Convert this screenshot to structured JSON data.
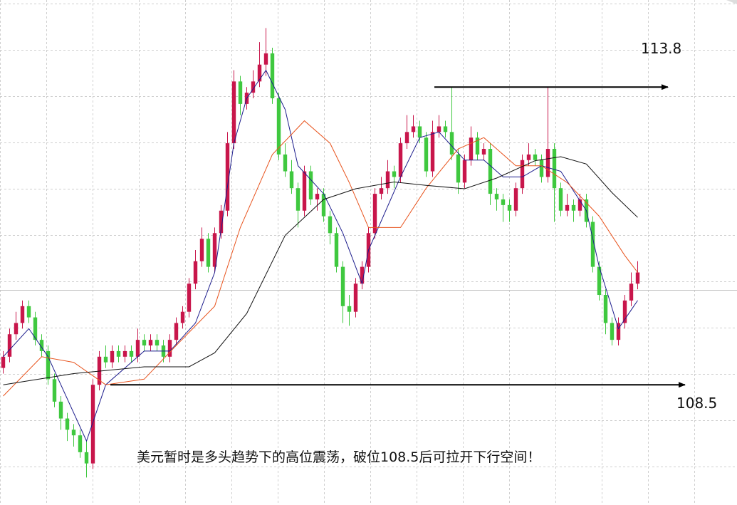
{
  "chart_data": {
    "type": "candlestick",
    "xlim": [
      -0.5,
      114.5
    ],
    "ylim": [
      106.36,
      115.35
    ],
    "colors": {
      "up": "#c8164b",
      "down": "#3fc83f"
    },
    "candles": [
      [
        108.8,
        109.1,
        108.7,
        109.0
      ],
      [
        109.0,
        109.5,
        108.9,
        109.4
      ],
      [
        109.4,
        109.8,
        109.3,
        109.6
      ],
      [
        109.6,
        110.0,
        109.5,
        109.9
      ],
      [
        109.9,
        110.0,
        109.6,
        109.7
      ],
      [
        109.7,
        109.8,
        109.2,
        109.3
      ],
      [
        109.3,
        109.4,
        109.0,
        109.1
      ],
      [
        109.1,
        109.2,
        108.5,
        108.6
      ],
      [
        108.6,
        108.7,
        108.1,
        108.2
      ],
      [
        108.2,
        108.3,
        107.7,
        107.9
      ],
      [
        107.9,
        108.0,
        107.5,
        107.7
      ],
      [
        107.7,
        107.8,
        107.4,
        107.6
      ],
      [
        107.6,
        107.7,
        107.2,
        107.3
      ],
      [
        107.3,
        107.5,
        106.85,
        107.1
      ],
      [
        107.1,
        108.6,
        107.0,
        108.5
      ],
      [
        108.5,
        109.1,
        108.4,
        109.0
      ],
      [
        109.0,
        109.2,
        108.8,
        108.9
      ],
      [
        108.9,
        109.2,
        108.8,
        109.1
      ],
      [
        109.1,
        109.2,
        108.9,
        109.0
      ],
      [
        109.0,
        109.2,
        108.9,
        109.1
      ],
      [
        109.1,
        109.2,
        108.9,
        109.0
      ],
      [
        109.0,
        109.5,
        108.9,
        109.3
      ],
      [
        109.3,
        109.4,
        109.1,
        109.2
      ],
      [
        109.2,
        109.4,
        109.1,
        109.3
      ],
      [
        109.3,
        109.4,
        109.1,
        109.2
      ],
      [
        109.2,
        109.3,
        108.9,
        109.0
      ],
      [
        109.0,
        109.4,
        108.9,
        109.3
      ],
      [
        109.3,
        109.7,
        109.2,
        109.6
      ],
      [
        109.6,
        109.9,
        109.5,
        109.8
      ],
      [
        109.8,
        110.4,
        109.7,
        110.3
      ],
      [
        110.3,
        110.9,
        110.2,
        110.7
      ],
      [
        110.7,
        111.3,
        110.6,
        111.1
      ],
      [
        111.1,
        111.2,
        110.5,
        110.6
      ],
      [
        110.6,
        111.3,
        110.5,
        111.2
      ],
      [
        111.2,
        111.7,
        111.1,
        111.6
      ],
      [
        111.6,
        113.0,
        111.5,
        112.8
      ],
      [
        112.8,
        114.1,
        112.7,
        113.9
      ],
      [
        113.9,
        114.0,
        113.3,
        113.5
      ],
      [
        113.5,
        113.8,
        113.4,
        113.7
      ],
      [
        113.7,
        114.1,
        113.6,
        113.9
      ],
      [
        113.9,
        114.6,
        113.8,
        114.2
      ],
      [
        114.2,
        114.85,
        114.0,
        114.4
      ],
      [
        114.4,
        114.5,
        113.5,
        113.6
      ],
      [
        113.6,
        113.7,
        112.5,
        112.6
      ],
      [
        112.6,
        112.8,
        112.2,
        112.3
      ],
      [
        112.3,
        112.5,
        111.9,
        112.0
      ],
      [
        112.0,
        112.1,
        111.3,
        111.6
      ],
      [
        111.6,
        112.4,
        111.5,
        112.3
      ],
      [
        112.3,
        112.4,
        111.7,
        111.8
      ],
      [
        111.8,
        112.0,
        111.6,
        111.9
      ],
      [
        111.9,
        112.0,
        111.4,
        111.5
      ],
      [
        111.5,
        111.6,
        111.0,
        111.2
      ],
      [
        111.2,
        111.3,
        110.5,
        110.6
      ],
      [
        110.6,
        110.7,
        109.6,
        109.9
      ],
      [
        109.9,
        110.1,
        109.55,
        109.8
      ],
      [
        109.8,
        110.4,
        109.7,
        110.3
      ],
      [
        110.3,
        110.7,
        110.2,
        110.6
      ],
      [
        110.6,
        111.3,
        110.5,
        111.2
      ],
      [
        111.2,
        112.0,
        111.1,
        111.9
      ],
      [
        111.9,
        112.2,
        111.8,
        112.0
      ],
      [
        112.0,
        112.5,
        111.9,
        112.3
      ],
      [
        112.3,
        112.4,
        112.0,
        112.2
      ],
      [
        112.2,
        112.9,
        112.1,
        112.8
      ],
      [
        112.8,
        113.3,
        112.7,
        113.0
      ],
      [
        113.0,
        113.3,
        112.9,
        113.1
      ],
      [
        113.1,
        113.2,
        112.8,
        112.9
      ],
      [
        112.9,
        113.0,
        112.2,
        112.3
      ],
      [
        112.3,
        113.2,
        112.2,
        113.0
      ],
      [
        113.0,
        113.3,
        112.9,
        113.1
      ],
      [
        113.1,
        113.2,
        112.9,
        113.0
      ],
      [
        113.0,
        113.8,
        112.5,
        112.6
      ],
      [
        112.6,
        112.7,
        111.9,
        112.1
      ],
      [
        112.1,
        112.6,
        112.0,
        112.5
      ],
      [
        112.5,
        113.1,
        112.4,
        112.9
      ],
      [
        112.9,
        113.0,
        112.5,
        112.6
      ],
      [
        112.6,
        112.8,
        112.5,
        112.7
      ],
      [
        112.7,
        112.8,
        111.7,
        111.9
      ],
      [
        111.9,
        112.0,
        111.6,
        111.8
      ],
      [
        111.8,
        111.9,
        111.4,
        111.7
      ],
      [
        111.7,
        111.8,
        111.4,
        111.6
      ],
      [
        111.6,
        112.1,
        111.5,
        112.0
      ],
      [
        112.0,
        112.6,
        111.9,
        112.5
      ],
      [
        112.5,
        112.8,
        112.4,
        112.6
      ],
      [
        112.6,
        112.7,
        112.4,
        112.5
      ],
      [
        112.5,
        112.6,
        112.1,
        112.2
      ],
      [
        112.2,
        113.8,
        112.1,
        112.7
      ],
      [
        112.7,
        112.8,
        111.4,
        112.0
      ],
      [
        112.0,
        112.1,
        111.5,
        111.6
      ],
      [
        111.6,
        111.9,
        111.5,
        111.7
      ],
      [
        111.7,
        111.8,
        111.4,
        111.6
      ],
      [
        111.6,
        111.9,
        111.5,
        111.8
      ],
      [
        111.8,
        111.9,
        111.3,
        111.4
      ],
      [
        111.4,
        111.5,
        110.5,
        110.6
      ],
      [
        110.6,
        110.7,
        110.0,
        110.1
      ],
      [
        110.1,
        110.2,
        109.4,
        109.6
      ],
      [
        109.6,
        109.7,
        109.2,
        109.3
      ],
      [
        109.3,
        109.7,
        109.2,
        109.6
      ],
      [
        109.6,
        110.1,
        109.5,
        110.0
      ],
      [
        110.0,
        110.5,
        109.9,
        110.3
      ],
      [
        110.3,
        110.7,
        110.2,
        110.5
      ]
    ],
    "series": [
      {
        "color": "#1c1c8c",
        "x": [
          0,
          4,
          7,
          11,
          13,
          16,
          22,
          26,
          30,
          33,
          36,
          38,
          41,
          44,
          46,
          50,
          53,
          56,
          57,
          62,
          65,
          68,
          72,
          75,
          78,
          81,
          84,
          87,
          91,
          93,
          96,
          99
        ],
        "values": [
          109.0,
          109.5,
          109.0,
          108.0,
          107.5,
          108.5,
          109.1,
          109.1,
          109.6,
          110.5,
          112.8,
          113.6,
          114.1,
          113.4,
          112.4,
          111.9,
          111.2,
          110.3,
          110.9,
          112.2,
          112.9,
          113.0,
          112.5,
          112.5,
          112.2,
          112.2,
          112.4,
          112.3,
          111.6,
          110.6,
          109.5,
          110.0
        ]
      },
      {
        "color": "#e8541e",
        "x": [
          0,
          6,
          11,
          16,
          22,
          27,
          33,
          37,
          42,
          47,
          51,
          54,
          57,
          62,
          66,
          71,
          75,
          80,
          84,
          88,
          93,
          97,
          99
        ],
        "values": [
          108.3,
          109.0,
          108.9,
          108.5,
          108.6,
          109.2,
          109.9,
          111.3,
          112.6,
          113.2,
          112.8,
          112.1,
          111.3,
          111.3,
          112.0,
          112.7,
          112.9,
          112.4,
          112.4,
          112.1,
          111.5,
          110.8,
          110.5
        ]
      },
      {
        "color": "#111111",
        "x": [
          0,
          11,
          22,
          29,
          33,
          38,
          44,
          50,
          55,
          61,
          66,
          72,
          77,
          83,
          87,
          91,
          95,
          99
        ],
        "values": [
          108.5,
          108.7,
          108.82,
          108.82,
          109.07,
          109.77,
          111.16,
          111.8,
          111.99,
          112.11,
          112.05,
          111.99,
          112.18,
          112.49,
          112.56,
          112.43,
          111.92,
          111.48
        ]
      }
    ],
    "levels": [
      113.8,
      108.5
    ],
    "annotation": "美元暂时是多头趋势下的高位震荡，破位108.5后可拉开下行空间！"
  }
}
